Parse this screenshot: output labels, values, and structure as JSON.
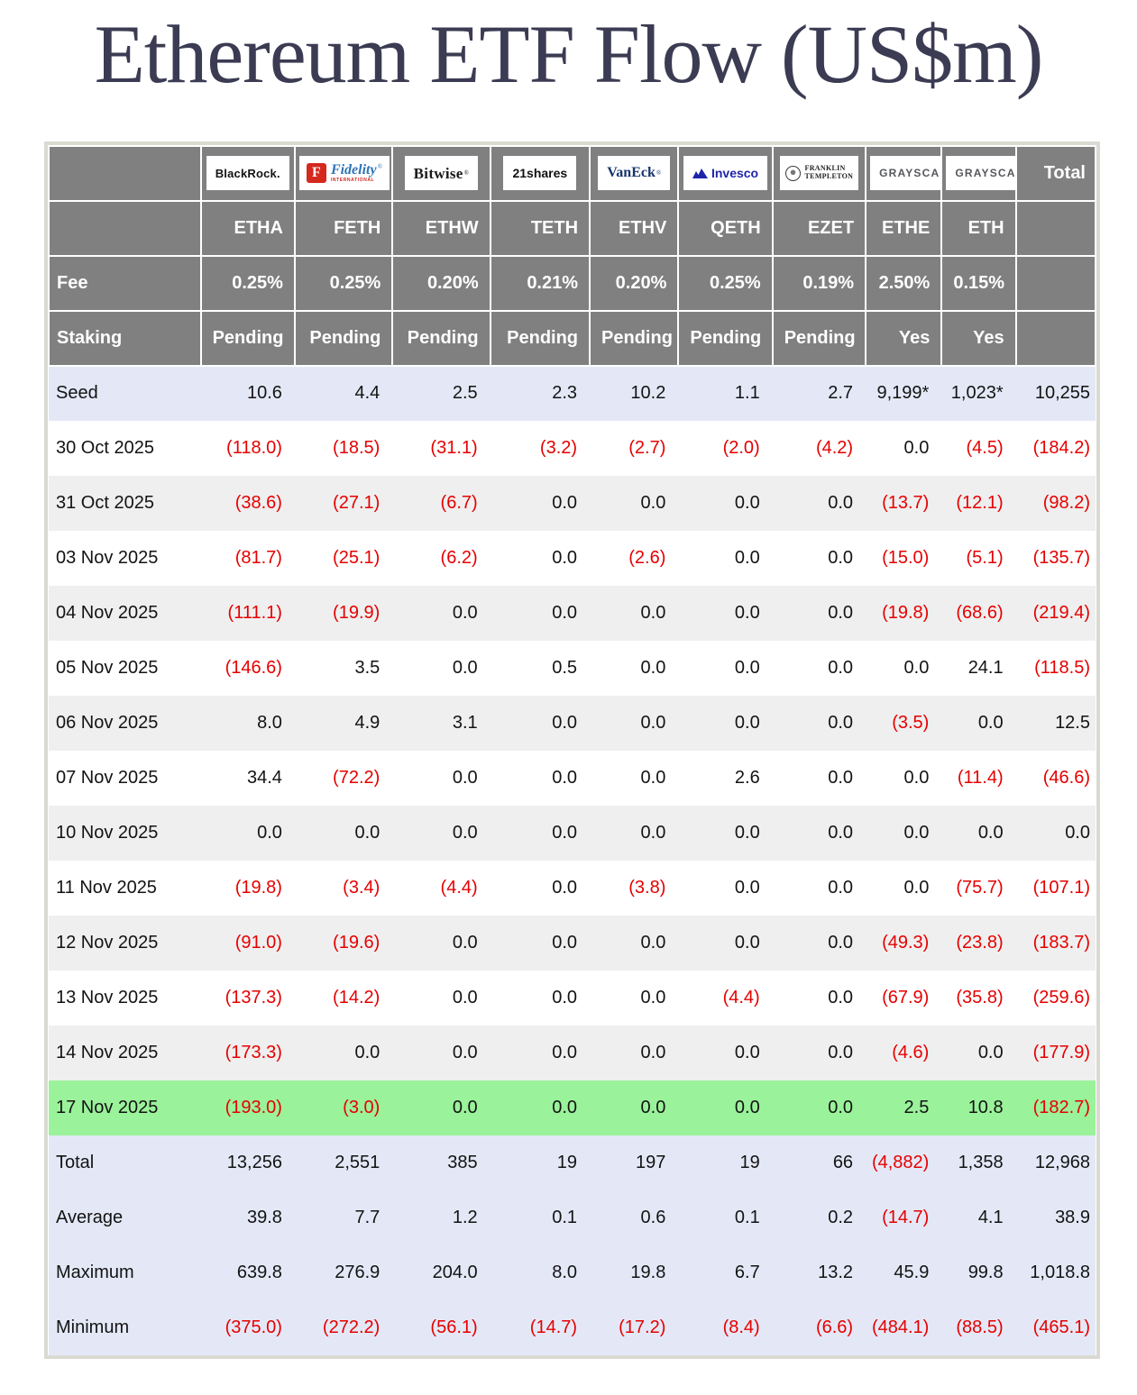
{
  "title": "Ethereum ETF Flow (US$m)",
  "colors": {
    "title_text": "#3b3b53",
    "header_bg": "#808080",
    "negative_value": "#e60000",
    "latest_row_highlight": "#9af29a",
    "summary_row_bg": "#e4e8f6",
    "stripe_row_bg": "#efefef"
  },
  "chart_data": {
    "type": "table",
    "title": "Ethereum ETF Flow (US$m)",
    "row_header_labels": {
      "fee": "Fee",
      "staking": "Staking"
    },
    "columns": [
      {
        "provider": "BlackRock",
        "logo": "blackrock",
        "logo_text": "BlackRock.",
        "ticker": "ETHA",
        "fee": "0.25%",
        "staking": "Pending"
      },
      {
        "provider": "Fidelity International",
        "logo": "fidelity",
        "logo_mark": "F",
        "logo_text": "Fidelity",
        "logo_reg": "®",
        "logo_sub": "INTERNATIONAL",
        "ticker": "FETH",
        "fee": "0.25%",
        "staking": "Pending"
      },
      {
        "provider": "Bitwise",
        "logo": "bitwise",
        "logo_text": "Bitwise",
        "logo_reg": "®",
        "ticker": "ETHW",
        "fee": "0.20%",
        "staking": "Pending"
      },
      {
        "provider": "21shares",
        "logo": "shares21",
        "logo_text": "21shares",
        "ticker": "TETH",
        "fee": "0.21%",
        "staking": "Pending"
      },
      {
        "provider": "VanEck",
        "logo": "vaneck",
        "logo_text": "VanEck",
        "logo_reg": "®",
        "ticker": "ETHV",
        "fee": "0.20%",
        "staking": "Pending"
      },
      {
        "provider": "Invesco",
        "logo": "invesco",
        "logo_text": "Invesco",
        "ticker": "QETH",
        "fee": "0.25%",
        "staking": "Pending"
      },
      {
        "provider": "Franklin Templeton",
        "logo": "franklin",
        "logo_text_1": "FRANKLIN",
        "logo_text_2": "TEMPLETON",
        "ticker": "EZET",
        "fee": "0.19%",
        "staking": "Pending"
      },
      {
        "provider": "Grayscale",
        "logo": "grayscale",
        "logo_text": "GRAYSCALE",
        "logo_reg": "®",
        "ticker": "ETHE",
        "fee": "2.50%",
        "staking": "Yes"
      },
      {
        "provider": "Grayscale",
        "logo": "grayscale",
        "logo_text": "GRAYSCALE",
        "logo_reg": "®",
        "ticker": "ETH",
        "fee": "0.15%",
        "staking": "Yes"
      },
      {
        "provider": "Total",
        "logo": "none",
        "header_label": "Total",
        "ticker": "",
        "fee": "",
        "staking": ""
      }
    ],
    "rows": [
      {
        "label": "Seed",
        "band": "seed",
        "values": [
          "10.6",
          "4.4",
          "2.5",
          "2.3",
          "10.2",
          "1.1",
          "2.7",
          "9,199*",
          "1,023*",
          "10,255"
        ]
      },
      {
        "label": "30 Oct 2025",
        "band": "w",
        "values": [
          "(118.0)",
          "(18.5)",
          "(31.1)",
          "(3.2)",
          "(2.7)",
          "(2.0)",
          "(4.2)",
          "0.0",
          "(4.5)",
          "(184.2)"
        ]
      },
      {
        "label": "31 Oct 2025",
        "band": "g",
        "values": [
          "(38.6)",
          "(27.1)",
          "(6.7)",
          "0.0",
          "0.0",
          "0.0",
          "0.0",
          "(13.7)",
          "(12.1)",
          "(98.2)"
        ]
      },
      {
        "label": "03 Nov 2025",
        "band": "w",
        "values": [
          "(81.7)",
          "(25.1)",
          "(6.2)",
          "0.0",
          "(2.6)",
          "0.0",
          "0.0",
          "(15.0)",
          "(5.1)",
          "(135.7)"
        ]
      },
      {
        "label": "04 Nov 2025",
        "band": "g",
        "values": [
          "(111.1)",
          "(19.9)",
          "0.0",
          "0.0",
          "0.0",
          "0.0",
          "0.0",
          "(19.8)",
          "(68.6)",
          "(219.4)"
        ]
      },
      {
        "label": "05 Nov 2025",
        "band": "w",
        "values": [
          "(146.6)",
          "3.5",
          "0.0",
          "0.5",
          "0.0",
          "0.0",
          "0.0",
          "0.0",
          "24.1",
          "(118.5)"
        ]
      },
      {
        "label": "06 Nov 2025",
        "band": "g",
        "values": [
          "8.0",
          "4.9",
          "3.1",
          "0.0",
          "0.0",
          "0.0",
          "0.0",
          "(3.5)",
          "0.0",
          "12.5"
        ]
      },
      {
        "label": "07 Nov 2025",
        "band": "w",
        "values": [
          "34.4",
          "(72.2)",
          "0.0",
          "0.0",
          "0.0",
          "2.6",
          "0.0",
          "0.0",
          "(11.4)",
          "(46.6)"
        ]
      },
      {
        "label": "10 Nov 2025",
        "band": "g",
        "values": [
          "0.0",
          "0.0",
          "0.0",
          "0.0",
          "0.0",
          "0.0",
          "0.0",
          "0.0",
          "0.0",
          "0.0"
        ]
      },
      {
        "label": "11 Nov 2025",
        "band": "w",
        "values": [
          "(19.8)",
          "(3.4)",
          "(4.4)",
          "0.0",
          "(3.8)",
          "0.0",
          "0.0",
          "0.0",
          "(75.7)",
          "(107.1)"
        ]
      },
      {
        "label": "12 Nov 2025",
        "band": "g",
        "values": [
          "(91.0)",
          "(19.6)",
          "0.0",
          "0.0",
          "0.0",
          "0.0",
          "0.0",
          "(49.3)",
          "(23.8)",
          "(183.7)"
        ]
      },
      {
        "label": "13 Nov 2025",
        "band": "w",
        "values": [
          "(137.3)",
          "(14.2)",
          "0.0",
          "0.0",
          "0.0",
          "(4.4)",
          "0.0",
          "(67.9)",
          "(35.8)",
          "(259.6)"
        ]
      },
      {
        "label": "14 Nov 2025",
        "band": "g",
        "values": [
          "(173.3)",
          "0.0",
          "0.0",
          "0.0",
          "0.0",
          "0.0",
          "0.0",
          "(4.6)",
          "0.0",
          "(177.9)"
        ]
      },
      {
        "label": "17 Nov 2025",
        "band": "latest",
        "values": [
          "(193.0)",
          "(3.0)",
          "0.0",
          "0.0",
          "0.0",
          "0.0",
          "0.0",
          "2.5",
          "10.8",
          "(182.7)"
        ]
      },
      {
        "label": "Total",
        "band": "sum",
        "values": [
          "13,256",
          "2,551",
          "385",
          "19",
          "197",
          "19",
          "66",
          "(4,882)",
          "1,358",
          "12,968"
        ]
      },
      {
        "label": "Average",
        "band": "sum",
        "values": [
          "39.8",
          "7.7",
          "1.2",
          "0.1",
          "0.6",
          "0.1",
          "0.2",
          "(14.7)",
          "4.1",
          "38.9"
        ]
      },
      {
        "label": "Maximum",
        "band": "sum",
        "values": [
          "639.8",
          "276.9",
          "204.0",
          "8.0",
          "19.8",
          "6.7",
          "13.2",
          "45.9",
          "99.8",
          "1,018.8"
        ]
      },
      {
        "label": "Minimum",
        "band": "sum",
        "values": [
          "(375.0)",
          "(272.2)",
          "(56.1)",
          "(14.7)",
          "(17.2)",
          "(8.4)",
          "(6.6)",
          "(484.1)",
          "(88.5)",
          "(465.1)"
        ]
      }
    ]
  }
}
